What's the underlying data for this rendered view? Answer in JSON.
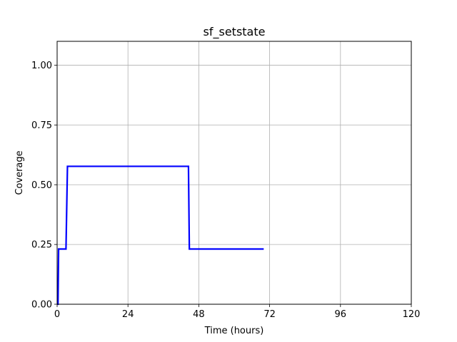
{
  "chart_data": {
    "type": "line",
    "title": "sf_setstate",
    "xlabel": "Time (hours)",
    "ylabel": "Coverage",
    "xlim": [
      0,
      120
    ],
    "ylim": [
      0,
      1.1
    ],
    "xticks": [
      0,
      24,
      48,
      72,
      96,
      120
    ],
    "xtick_labels": [
      "0",
      "24",
      "48",
      "72",
      "96",
      "120"
    ],
    "yticks": [
      0.0,
      0.25,
      0.5,
      0.75,
      1.0
    ],
    "ytick_labels": [
      "0.00",
      "0.25",
      "0.50",
      "0.75",
      "1.00"
    ],
    "grid": true,
    "series": [
      {
        "color": "#0000ff",
        "x": [
          0,
          0.3,
          0.5,
          3,
          3.5,
          44.5,
          44.8,
          70
        ],
        "y": [
          0,
          0,
          0.231,
          0.231,
          0.577,
          0.577,
          0.231,
          0.231
        ]
      }
    ]
  }
}
